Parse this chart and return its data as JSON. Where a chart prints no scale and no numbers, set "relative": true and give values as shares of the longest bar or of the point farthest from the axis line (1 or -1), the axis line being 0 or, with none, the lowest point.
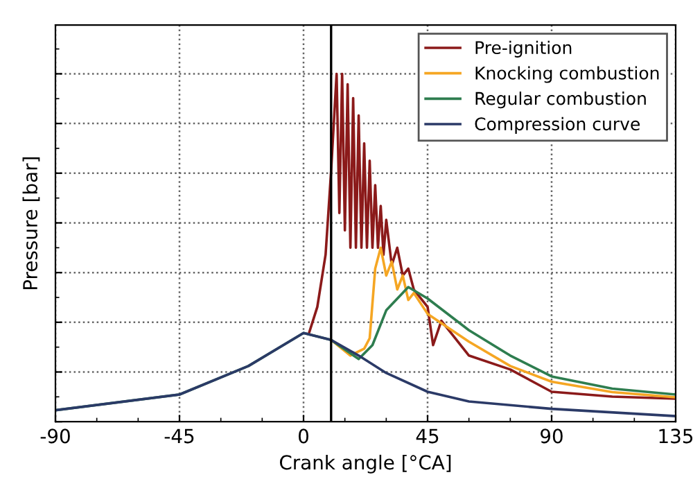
{
  "chart_data": {
    "type": "line",
    "xlabel": "Crank angle [°CA]",
    "ylabel": "Pressure [bar]",
    "relative": true,
    "xlim": [
      -90,
      135
    ],
    "xticks": [
      -90,
      -45,
      0,
      45,
      90,
      135
    ],
    "grid": true,
    "legend": "top right",
    "tick_labels": "x",
    "line_style": "solid",
    "ref_lines": [
      {
        "axis": "x",
        "value": 10,
        "color": "#000000"
      }
    ],
    "series": [
      {
        "name": "Pre-ignition",
        "color": "#8b1a1a",
        "x": [
          2,
          5,
          8,
          10,
          12,
          13,
          14,
          15,
          16,
          17,
          18,
          19,
          20,
          21,
          22,
          23,
          24,
          25,
          26,
          27,
          28,
          29,
          30,
          32,
          34,
          36,
          38,
          40,
          45,
          47,
          50,
          60,
          75,
          90,
          112,
          135
        ],
        "values": [
          0.255,
          0.33,
          0.48,
          0.72,
          1.0,
          0.6,
          1.0,
          0.55,
          0.97,
          0.5,
          0.93,
          0.5,
          0.88,
          0.5,
          0.8,
          0.5,
          0.75,
          0.5,
          0.68,
          0.5,
          0.62,
          0.48,
          0.58,
          0.45,
          0.5,
          0.42,
          0.44,
          0.38,
          0.33,
          0.22,
          0.29,
          0.19,
          0.15,
          0.086,
          0.072,
          0.066
        ]
      },
      {
        "name": "Knocking combustion",
        "color": "#f5a623",
        "x": [
          10,
          17,
          22,
          24,
          26,
          28,
          30,
          32,
          34,
          36,
          38,
          40,
          45,
          60,
          75,
          90,
          112,
          135
        ],
        "values": [
          0.235,
          0.19,
          0.21,
          0.24,
          0.44,
          0.5,
          0.42,
          0.46,
          0.38,
          0.42,
          0.35,
          0.37,
          0.31,
          0.23,
          0.16,
          0.115,
          0.085,
          0.07
        ]
      },
      {
        "name": "Regular combustion",
        "color": "#2e7d4f",
        "x": [
          -90,
          -45,
          -20,
          0,
          10,
          20,
          25,
          30,
          38,
          45,
          60,
          75,
          90,
          112,
          135
        ],
        "values": [
          0.033,
          0.078,
          0.16,
          0.255,
          0.235,
          0.18,
          0.22,
          0.32,
          0.387,
          0.354,
          0.263,
          0.19,
          0.13,
          0.095,
          0.078
        ]
      },
      {
        "name": "Compression curve",
        "color": "#2b3a67",
        "x": [
          -90,
          -45,
          -20,
          0,
          10,
          20,
          30,
          45,
          60,
          90,
          135
        ],
        "values": [
          0.033,
          0.078,
          0.16,
          0.255,
          0.235,
          0.19,
          0.14,
          0.086,
          0.058,
          0.037,
          0.016
        ]
      }
    ]
  }
}
